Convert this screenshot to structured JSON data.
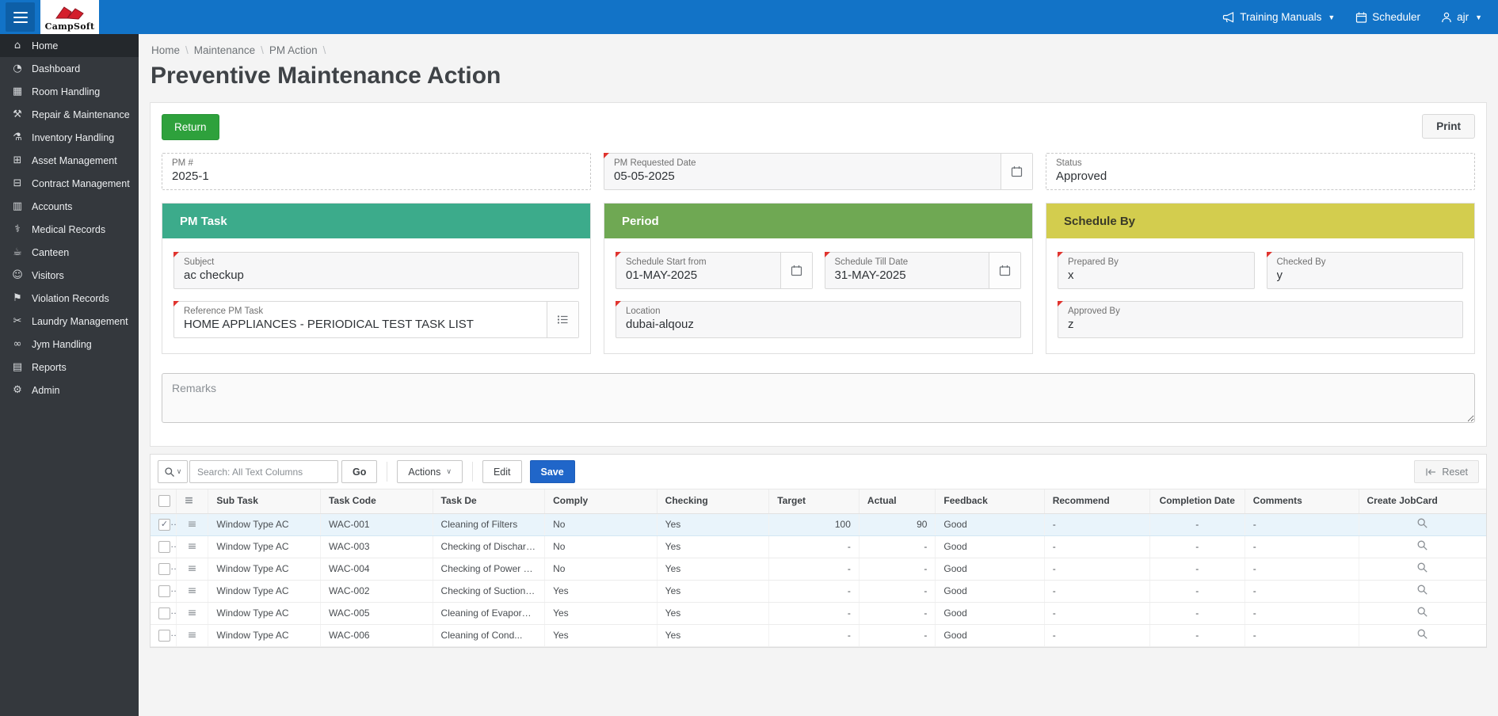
{
  "topbar": {
    "brand": "CampSoft",
    "links": [
      {
        "label": "Training Manuals",
        "icon": "megaphone-icon",
        "caret": "▼"
      },
      {
        "label": "Scheduler",
        "icon": "calendar-icon",
        "caret": ""
      },
      {
        "label": "ajr",
        "icon": "person-icon",
        "caret": "▼"
      }
    ]
  },
  "sidebar": {
    "items": [
      {
        "label": "Home",
        "icon": "home-icon",
        "glyph": "⌂",
        "active": true
      },
      {
        "label": "Dashboard",
        "icon": "dashboard-icon",
        "glyph": "◔",
        "active": false
      },
      {
        "label": "Room Handling",
        "icon": "building-icon",
        "glyph": "▦",
        "active": false
      },
      {
        "label": "Repair & Maintenance",
        "icon": "tools-icon",
        "glyph": "⚒",
        "active": false
      },
      {
        "label": "Inventory Handling",
        "icon": "inventory-icon",
        "glyph": "⚗",
        "active": false
      },
      {
        "label": "Asset Management",
        "icon": "asset-icon",
        "glyph": "⊞",
        "active": false
      },
      {
        "label": "Contract Management",
        "icon": "folder-icon",
        "glyph": "⊟",
        "active": false
      },
      {
        "label": "Accounts",
        "icon": "calculator-icon",
        "glyph": "▥",
        "active": false
      },
      {
        "label": "Medical Records",
        "icon": "medical-icon",
        "glyph": "⚕",
        "active": false
      },
      {
        "label": "Canteen",
        "icon": "coffee-icon",
        "glyph": "☕",
        "active": false
      },
      {
        "label": "Visitors",
        "icon": "visitors-icon",
        "glyph": "☺",
        "active": false
      },
      {
        "label": "Violation Records",
        "icon": "pin-icon",
        "glyph": "⚑",
        "active": false
      },
      {
        "label": "Laundry Management",
        "icon": "laundry-icon",
        "glyph": "✂",
        "active": false
      },
      {
        "label": "Jym Handling",
        "icon": "bicycle-icon",
        "glyph": "∞",
        "active": false
      },
      {
        "label": "Reports",
        "icon": "report-icon",
        "glyph": "▤",
        "active": false
      },
      {
        "label": "Admin",
        "icon": "gear-icon",
        "glyph": "⚙",
        "active": false
      }
    ]
  },
  "breadcrumb": {
    "items": [
      "Home",
      "Maintenance",
      "PM Action"
    ],
    "separator": "\\"
  },
  "page": {
    "title": "Preventive Maintenance Action"
  },
  "form": {
    "return_label": "Return",
    "print_label": "Print",
    "fields": {
      "pm_number": {
        "label": "PM #",
        "value": "2025-1"
      },
      "pm_requested_date": {
        "label": "PM Requested Date",
        "value": "05-05-2025"
      },
      "status": {
        "label": "Status",
        "value": "Approved"
      },
      "subject": {
        "label": "Subject",
        "value": "ac checkup"
      },
      "reference_pm_task": {
        "label": "Reference PM Task",
        "value": "HOME APPLIANCES - PERIODICAL TEST TASK LIST"
      },
      "schedule_start": {
        "label": "Schedule Start from",
        "value": "01-MAY-2025"
      },
      "schedule_till": {
        "label": "Schedule Till Date",
        "value": "31-MAY-2025"
      },
      "location": {
        "label": "Location",
        "value": "dubai-alqouz"
      },
      "prepared_by": {
        "label": "Prepared By",
        "value": "x"
      },
      "checked_by": {
        "label": "Checked By",
        "value": "y"
      },
      "approved_by": {
        "label": "Approved By",
        "value": "z"
      },
      "remarks_placeholder": "Remarks"
    },
    "panels": {
      "pm_task": {
        "title": "PM Task",
        "color": "#3cab8b"
      },
      "period": {
        "title": "Period",
        "color": "#6fa853"
      },
      "schedule_by": {
        "title": "Schedule By",
        "color": "#d3cd4e"
      }
    }
  },
  "grid": {
    "toolbar": {
      "search_placeholder": "Search: All Text Columns",
      "go_label": "Go",
      "actions_label": "Actions",
      "edit_label": "Edit",
      "save_label": "Save",
      "reset_label": "Reset"
    },
    "columns": [
      "Sub Task",
      "Task Code",
      "Task De",
      "Comply",
      "Checking",
      "Target",
      "Actual",
      "Feedback",
      "Recommend",
      "Completion Date",
      "Comments",
      "Create JobCard"
    ],
    "rows": [
      {
        "selected": true,
        "sub_task": "Window Type AC",
        "task_code": "WAC-001",
        "task_de": "Cleaning of Filters",
        "comply": "No",
        "checking": "Yes",
        "target": "100",
        "actual": "90",
        "feedback": "Good",
        "recommend": "-",
        "completion_date": "-",
        "comments": "-"
      },
      {
        "selected": false,
        "sub_task": "Window Type AC",
        "task_code": "WAC-003",
        "task_de": "Checking of Discharge ...",
        "comply": "No",
        "checking": "Yes",
        "target": "-",
        "actual": "-",
        "feedback": "Good",
        "recommend": "-",
        "completion_date": "-",
        "comments": "-"
      },
      {
        "selected": false,
        "sub_task": "Window Type AC",
        "task_code": "WAC-004",
        "task_de": "Checking of Power Con...",
        "comply": "No",
        "checking": "Yes",
        "target": "-",
        "actual": "-",
        "feedback": "Good",
        "recommend": "-",
        "completion_date": "-",
        "comments": "-"
      },
      {
        "selected": false,
        "sub_task": "Window Type AC",
        "task_code": "WAC-002",
        "task_de": "Checking of Suction Pr...",
        "comply": "Yes",
        "checking": "Yes",
        "target": "-",
        "actual": "-",
        "feedback": "Good",
        "recommend": "-",
        "completion_date": "-",
        "comments": "-"
      },
      {
        "selected": false,
        "sub_task": "Window Type AC",
        "task_code": "WAC-005",
        "task_de": "Cleaning of Evaporator",
        "comply": "Yes",
        "checking": "Yes",
        "target": "-",
        "actual": "-",
        "feedback": "Good",
        "recommend": "-",
        "completion_date": "-",
        "comments": "-"
      },
      {
        "selected": false,
        "sub_task": "Window Type AC",
        "task_code": "WAC-006",
        "task_de": "Cleaning of Cond...",
        "comply": "Yes",
        "checking": "Yes",
        "target": "-",
        "actual": "-",
        "feedback": "Good",
        "recommend": "-",
        "completion_date": "-",
        "comments": "-"
      }
    ]
  },
  "colors": {
    "topbar": "#1273c7",
    "hamburger_box": "#0d5fa7",
    "sidebar": "#34383d",
    "return_button": "#2ea13c",
    "save_button": "#2066c9",
    "pm_task_header": "#3cab8b",
    "period_header": "#6fa853",
    "schedule_by_header": "#d3cd4e",
    "selected_row": "#e9f4fb",
    "required_marker": "#e0342f"
  }
}
